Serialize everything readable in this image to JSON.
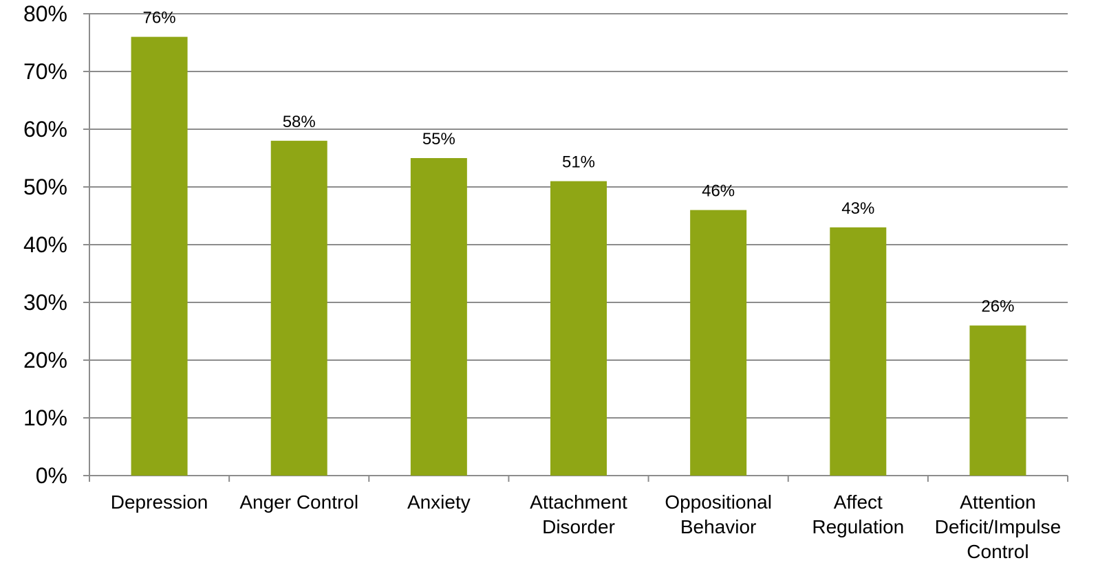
{
  "chart_data": {
    "type": "bar",
    "title": "",
    "xlabel": "",
    "ylabel": "",
    "categories": [
      [
        "Depression"
      ],
      [
        "Anger Control"
      ],
      [
        "Anxiety"
      ],
      [
        "Attachment",
        "Disorder"
      ],
      [
        "Oppositional",
        "Behavior"
      ],
      [
        "Affect",
        "Regulation"
      ],
      [
        "Attention",
        "Deficit/Impulse",
        "Control"
      ]
    ],
    "values": [
      76,
      58,
      55,
      51,
      46,
      43,
      26
    ],
    "data_labels": [
      "76%",
      "58%",
      "55%",
      "51%",
      "46%",
      "43%",
      "26%"
    ],
    "ylim": [
      0,
      80
    ],
    "yticks": [
      0,
      10,
      20,
      30,
      40,
      50,
      60,
      70,
      80
    ],
    "ytick_labels": [
      "0%",
      "10%",
      "20%",
      "30%",
      "40%",
      "50%",
      "60%",
      "70%",
      "80%"
    ],
    "grid": true,
    "legend": "none",
    "colors": {
      "bar": "#8fa615",
      "grid": "#8c8c8c",
      "axis": "#8c8c8c"
    }
  }
}
